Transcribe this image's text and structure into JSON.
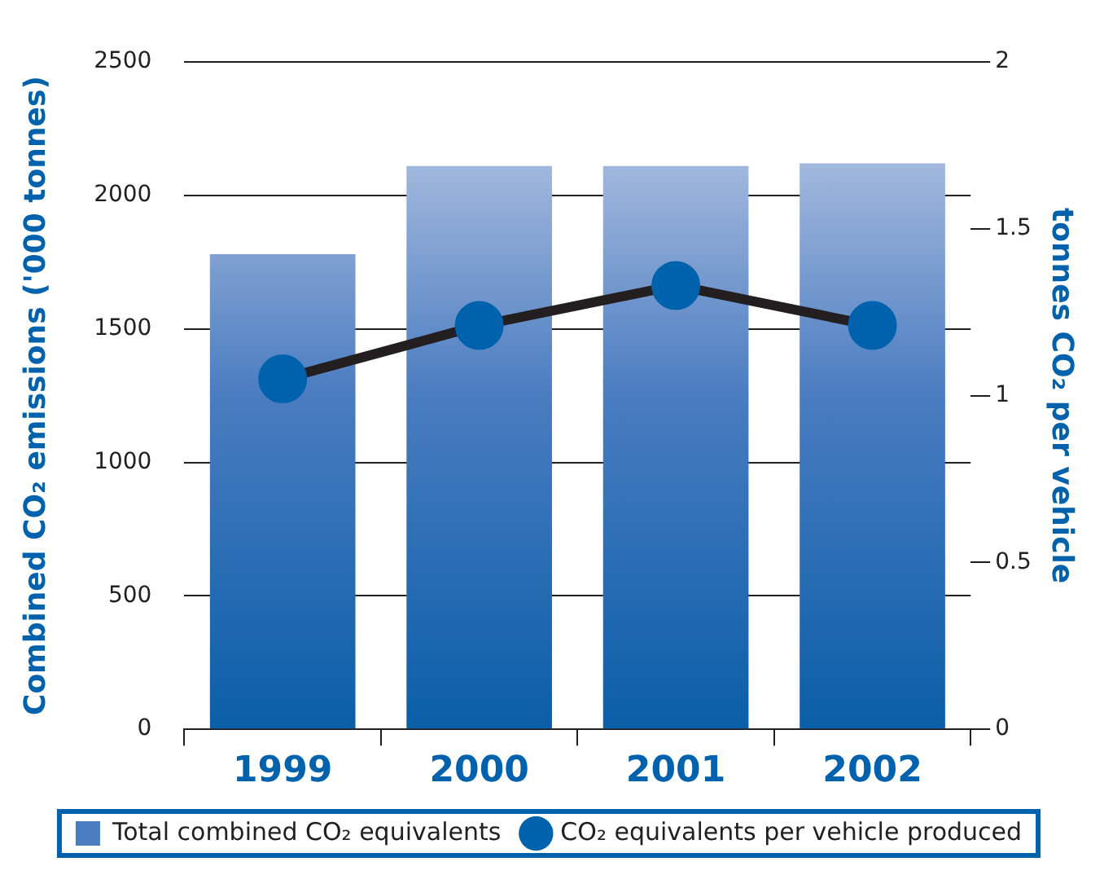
{
  "chart_data": {
    "type": "bar",
    "ylabel": "Combined CO₂ emissions ('000 tonnes)",
    "y2label": "tonnes CO₂ per vehicle",
    "categories": [
      "1999",
      "2000",
      "2001",
      "2002"
    ],
    "series": [
      {
        "name": "Total combined CO₂ equivalents",
        "color": "#4a7cc0",
        "values": [
          1780,
          2110,
          2110,
          2120
        ]
      },
      {
        "name": "CO₂ equivalents per vehicle produced",
        "type": "line",
        "axis": "y2",
        "color": "#231f20",
        "marker": "circle",
        "values": [
          1.05,
          1.21,
          1.33,
          1.21
        ]
      }
    ],
    "ylim": [
      0,
      2500
    ],
    "yticks": [
      0,
      500,
      1000,
      1500,
      2000,
      2500
    ],
    "y2lim": [
      0,
      2
    ],
    "y2ticks": [
      0,
      0.5,
      1,
      1.5,
      2
    ],
    "grid": "y",
    "legend": "bottom"
  }
}
